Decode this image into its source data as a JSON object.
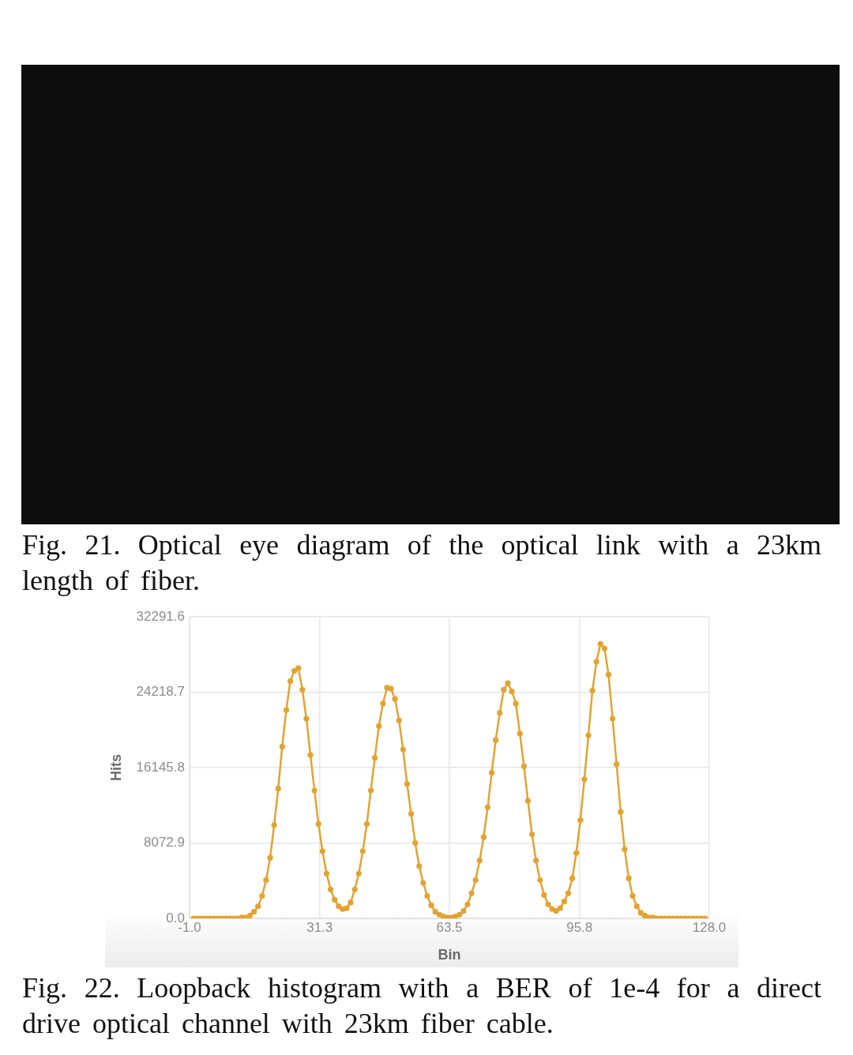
{
  "chart_data": {
    "type": "line",
    "annotations": [
      "Fig. 21. Optical eye diagram of the optical link with a 23km length of fiber.",
      "Fig. 22. Loopback histogram with a BER of 1e-4 for a direct drive optical channel with 23km fiber cable."
    ],
    "xlabel": "Bin",
    "ylabel": "Hits",
    "x": [
      0,
      1,
      2,
      3,
      4,
      5,
      6,
      7,
      8,
      9,
      10,
      11,
      12,
      13,
      14,
      15,
      16,
      17,
      18,
      19,
      20,
      21,
      22,
      23,
      24,
      25,
      26,
      27,
      28,
      29,
      30,
      31,
      32,
      33,
      34,
      35,
      36,
      37,
      38,
      39,
      40,
      41,
      42,
      43,
      44,
      45,
      46,
      47,
      48,
      49,
      50,
      51,
      52,
      53,
      54,
      55,
      56,
      57,
      58,
      59,
      60,
      61,
      62,
      63,
      64,
      65,
      66,
      67,
      68,
      69,
      70,
      71,
      72,
      73,
      74,
      75,
      76,
      77,
      78,
      79,
      80,
      81,
      82,
      83,
      84,
      85,
      86,
      87,
      88,
      89,
      90,
      91,
      92,
      93,
      94,
      95,
      96,
      97,
      98,
      99,
      100,
      101,
      102,
      103,
      104,
      105,
      106,
      107,
      108,
      109,
      110,
      111,
      112,
      113,
      114,
      115,
      116,
      117,
      118,
      119,
      120,
      121,
      122,
      123,
      124,
      125,
      126,
      127
    ],
    "series": [
      {
        "color": "#e2a332",
        "values": [
          0,
          0,
          0,
          0,
          0,
          0,
          0,
          0,
          0,
          0,
          0,
          0,
          100,
          100,
          300,
          700,
          1300,
          2400,
          4100,
          6500,
          10000,
          13900,
          18400,
          22300,
          25400,
          26500,
          26800,
          24500,
          21400,
          17500,
          13700,
          10100,
          7200,
          4800,
          3100,
          2000,
          1300,
          1000,
          1100,
          1700,
          3100,
          4800,
          7200,
          10100,
          13700,
          17200,
          20600,
          23000,
          24700,
          24600,
          23500,
          21200,
          18100,
          14400,
          11200,
          8100,
          5600,
          3800,
          2400,
          1400,
          700,
          400,
          200,
          100,
          100,
          200,
          400,
          800,
          1500,
          2700,
          4100,
          6200,
          8700,
          11900,
          15600,
          19100,
          22000,
          24500,
          25200,
          24300,
          23000,
          19800,
          16300,
          12600,
          9000,
          6200,
          4100,
          2500,
          1500,
          1000,
          800,
          1100,
          1800,
          2700,
          4300,
          7000,
          10500,
          14900,
          19600,
          24400,
          27500,
          29400,
          28900,
          26100,
          21400,
          16500,
          11400,
          7400,
          4300,
          2400,
          1300,
          600,
          300,
          100,
          100,
          0,
          0,
          0,
          0,
          0,
          0,
          0,
          0,
          0,
          0,
          0,
          0,
          0
        ]
      }
    ],
    "xlim": [
      -1,
      128
    ],
    "xticks": [
      {
        "value": -1,
        "label": "-1.0"
      },
      31.3,
      63.5,
      95.8,
      {
        "value": 128,
        "label": "128.0"
      }
    ],
    "ylim": [
      0,
      32291.6
    ],
    "yticks": [
      {
        "value": 0,
        "label": "0.0"
      },
      8072.9,
      16145.8,
      24218.7,
      32291.6
    ],
    "grid": true,
    "marker": "circle",
    "line_style": "solid"
  }
}
